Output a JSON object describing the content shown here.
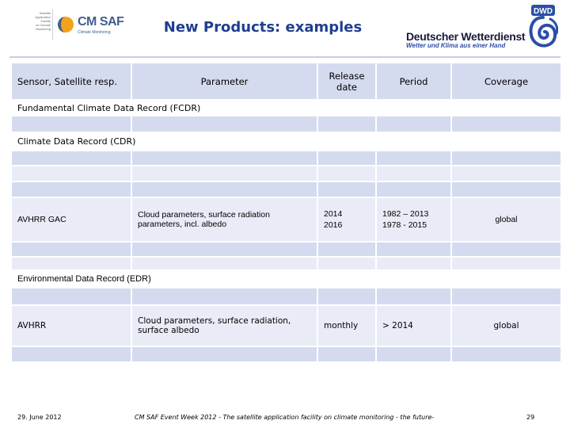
{
  "header": {
    "left_logo": {
      "small_text": [
        "Satellite",
        "Application",
        "Facility",
        "on Climate",
        "Monitoring"
      ],
      "brand": "CM SAF",
      "tagline": "Climate Monitoring",
      "colors": {
        "blue": "#3f5f8f",
        "orange": "#f3a21b"
      }
    },
    "title": "New Products: examples",
    "right_logo": {
      "badge": "DWD",
      "name": "Deutscher Wetterdienst",
      "slogan": "Wetter und Klima aus einer Hand",
      "colors": {
        "navy": "#1a1a3a",
        "blue": "#2b4fa8"
      }
    }
  },
  "table": {
    "columns": {
      "sensor": "Sensor, Satellite resp.",
      "parameter": "Parameter",
      "release": "Release date",
      "period": "Period",
      "coverage": "Coverage"
    },
    "sections": {
      "fcdr": "Fundamental Climate Data Record (FCDR)",
      "cdr": "Climate Data Record (CDR)",
      "edr": "Environmental Data Record (EDR)"
    },
    "rows": {
      "gac": {
        "sensor": "AVHRR GAC",
        "parameter": "Cloud parameters, surface radiation parameters, incl. albedo",
        "release": "2014 2016",
        "period": "1982 – 2013 1978 - 2015",
        "coverage": "global"
      },
      "avhrr": {
        "sensor": "AVHRR",
        "parameter": "Cloud parameters, surface radiation, surface albedo",
        "release": "monthly",
        "period": "> 2014",
        "coverage": "global"
      }
    },
    "colors": {
      "dark_row": "#d4dbef",
      "light_row": "#e9ecf6"
    }
  },
  "footer": {
    "date": "29. June 2012",
    "event": "CM SAF Event Week 2012 - The satellite application facility on climate monitoring - the future-",
    "page": "29"
  }
}
